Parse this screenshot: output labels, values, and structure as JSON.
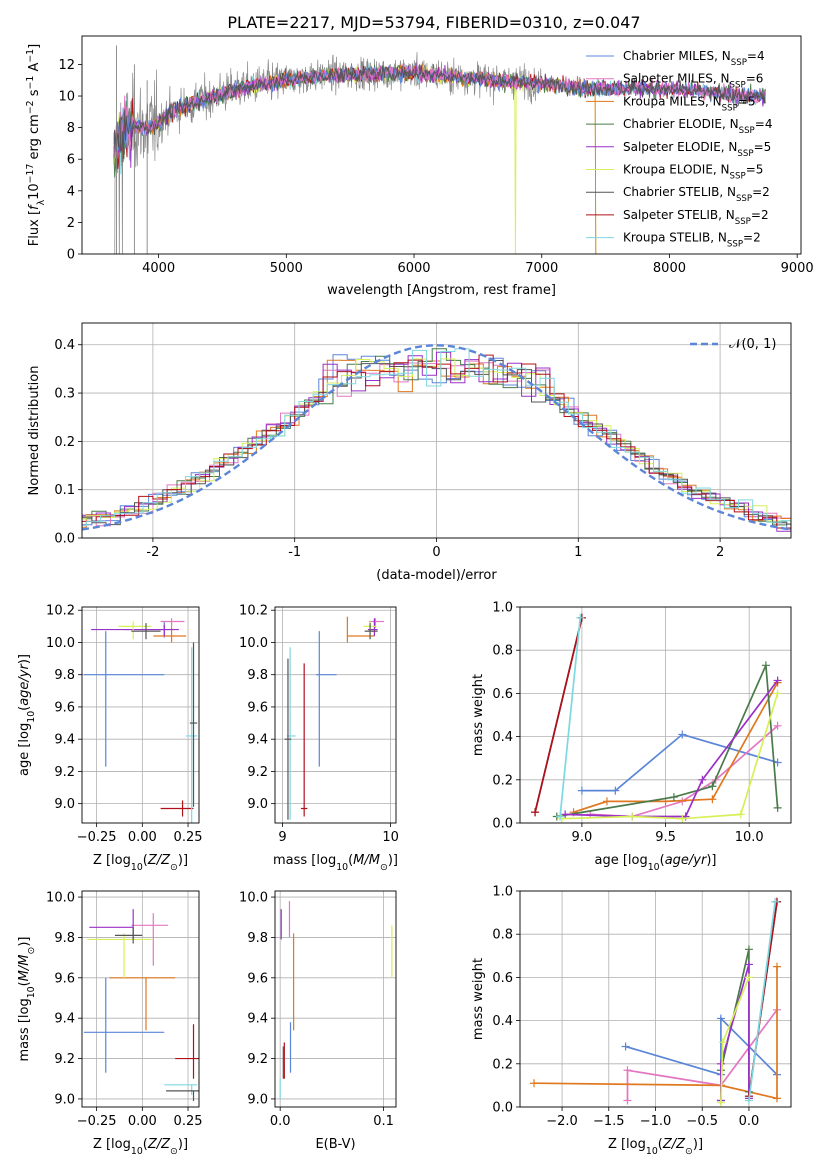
{
  "title": "PLATE=2217, MJD=53794, FIBERID=0310, z=0.047",
  "colors": [
    "#5b86d8",
    "#e377c2",
    "#e07820",
    "#4a7a4a",
    "#9b30c8",
    "#d6f05a",
    "#555555",
    "#b0101a",
    "#7ed8e0"
  ],
  "chart_data": [
    {
      "id": "spectrum",
      "type": "line",
      "title": "PLATE=2217, MJD=53794, FIBERID=0310, z=0.047",
      "xlabel": "wavelength [Angstrom, rest frame]",
      "ylabel": "Flux [f_λ 10^-17 erg cm^-2 s^-1 A^-1]",
      "xlim": [
        3400,
        9030
      ],
      "ylim": [
        0,
        13.8
      ],
      "xticks": [
        4000,
        5000,
        6000,
        7000,
        8000,
        9000
      ],
      "yticks": [
        0,
        2,
        4,
        6,
        8,
        10,
        12
      ],
      "grid": false,
      "legend_position": "right",
      "series": [
        {
          "name": "Chabrier MILES, N_SSP=4",
          "label": "Chabrier MILES, N",
          "n": "=4",
          "color": "#5b86d8"
        },
        {
          "name": "Salpeter MILES, N_SSP=6",
          "label": "Salpeter MILES, N",
          "n": "=6",
          "color": "#e377c2"
        },
        {
          "name": "Kroupa MILES, N_SSP=5",
          "label": "Kroupa MILES, N",
          "n": "=5",
          "color": "#e07820"
        },
        {
          "name": "Chabrier ELODIE, N_SSP=4",
          "label": "Chabrier ELODIE, N",
          "n": "=4",
          "color": "#4a7a4a"
        },
        {
          "name": "Salpeter ELODIE, N_SSP=5",
          "label": "Salpeter ELODIE, N",
          "n": "=5",
          "color": "#9b30c8"
        },
        {
          "name": "Kroupa ELODIE, N_SSP=5",
          "label": "Kroupa ELODIE, N",
          "n": "=5",
          "color": "#d6f05a"
        },
        {
          "name": "Chabrier STELIB, N_SSP=2",
          "label": "Chabrier STELIB, N",
          "n": "=2",
          "color": "#555555"
        },
        {
          "name": "Salpeter STELIB, N_SSP=2",
          "label": "Salpeter STELIB, N",
          "n": "=2",
          "color": "#b0101a"
        },
        {
          "name": "Kroupa STELIB, N_SSP=2",
          "label": "Kroupa STELIB, N",
          "n": "=2",
          "color": "#7ed8e0"
        }
      ],
      "continuum": [
        [
          3650,
          6.5
        ],
        [
          3700,
          7.5
        ],
        [
          3800,
          8.2
        ],
        [
          3900,
          8.0
        ],
        [
          4000,
          8.3
        ],
        [
          4100,
          9.0
        ],
        [
          4300,
          9.6
        ],
        [
          4500,
          10.2
        ],
        [
          4700,
          10.6
        ],
        [
          5000,
          11.0
        ],
        [
          5300,
          11.3
        ],
        [
          5600,
          11.4
        ],
        [
          6000,
          11.5
        ],
        [
          6500,
          11.1
        ],
        [
          7000,
          10.8
        ],
        [
          7400,
          10.5
        ],
        [
          7800,
          10.5
        ],
        [
          8200,
          10.3
        ],
        [
          8600,
          10.0
        ],
        [
          8750,
          10.0
        ]
      ],
      "data_range": [
        3650,
        8750
      ]
    },
    {
      "id": "residuals",
      "type": "histogram",
      "xlabel": "(data-model)/error",
      "ylabel": "Normed distribution",
      "xlim": [
        -2.5,
        2.5
      ],
      "ylim": [
        0,
        0.445
      ],
      "xticks": [
        -2,
        -1,
        0,
        1,
        2
      ],
      "yticks": [
        0.0,
        0.1,
        0.2,
        0.3,
        0.4
      ],
      "grid": true,
      "legend": "N(0,1)",
      "legend_position": "top-right",
      "bin_width": 0.1,
      "model_sigma": 1.0
    },
    {
      "id": "age_Z",
      "type": "errorbar",
      "xlabel": "Z [log10(Z/Z☉)]",
      "ylabel": "age  [log10(age/yr)]",
      "xlim": [
        -0.33,
        0.31
      ],
      "ylim": [
        8.88,
        10.22
      ],
      "xticks": [
        -0.25,
        0.0,
        0.25
      ],
      "xticklabels": [
        "−0.25",
        "0.00",
        "0.25"
      ],
      "yticks": [
        9.0,
        9.2,
        9.4,
        9.6,
        9.8,
        10.0,
        10.2
      ],
      "grid": true,
      "points": [
        {
          "c": 0,
          "x": 0.12,
          "xe": [
            0.22,
            0.03
          ],
          "y": 10.08,
          "ye": [
            0.05,
            0.05
          ]
        },
        {
          "c": 1,
          "x": 0.16,
          "xe": [
            0.06,
            0.07
          ],
          "y": 10.13,
          "ye": [
            0.04,
            0.02
          ]
        },
        {
          "c": 2,
          "x": 0.16,
          "xe": [
            0.1,
            0.08
          ],
          "y": 10.04,
          "ye": [
            0.04,
            0.05
          ]
        },
        {
          "c": 4,
          "x": 0.12,
          "xe": [
            0.4,
            0.08
          ],
          "y": 10.08,
          "ye": [
            0.04,
            0.03
          ]
        },
        {
          "c": 5,
          "x": -0.05,
          "xe": [
            0.08,
            0.1
          ],
          "y": 10.1,
          "ye": [
            0.08,
            0.03
          ]
        },
        {
          "c": 6,
          "x": 0.02,
          "xe": [
            0.08,
            0.08
          ],
          "y": 10.07,
          "ye": [
            0.05,
            0.05
          ]
        },
        {
          "c": 0,
          "x": -0.2,
          "xe": [
            0.12,
            0.32
          ],
          "y": 9.8,
          "ye": [
            0.57,
            0.27
          ]
        },
        {
          "c": 7,
          "x": 0.22,
          "xe": [
            0.12,
            0.06
          ],
          "y": 8.97,
          "ye": [
            0.05,
            0.05
          ]
        },
        {
          "c": 8,
          "x": 0.27,
          "xe": [
            0.03,
            0.03
          ],
          "y": 9.42,
          "ye": [
            0.55,
            0.55
          ]
        },
        {
          "c": 6,
          "x": 0.28,
          "xe": [
            0.02,
            0.02
          ],
          "y": 9.5,
          "ye": [
            0.52,
            0.5
          ]
        }
      ]
    },
    {
      "id": "age_mass",
      "type": "errorbar",
      "xlabel": "mass [log10(M/M☉)]",
      "ylabel": "",
      "xlim": [
        8.93,
        10.05
      ],
      "ylim": [
        8.88,
        10.22
      ],
      "xticks": [
        9,
        10
      ],
      "xticklabels": [
        "9",
        "10"
      ],
      "yticks": [
        9.0,
        9.2,
        9.4,
        9.6,
        9.8,
        10.0,
        10.2
      ],
      "grid": true,
      "points": [
        {
          "c": 0,
          "x": 9.34,
          "xe": [
            0.03,
            0.16
          ],
          "y": 9.8,
          "ye": [
            0.57,
            0.27
          ]
        },
        {
          "c": 2,
          "x": 9.6,
          "xe": [
            0.0,
            0.25
          ],
          "y": 10.04,
          "ye": [
            0.04,
            0.12
          ]
        },
        {
          "c": 1,
          "x": 9.86,
          "xe": [
            0.06,
            0.08
          ],
          "y": 10.13,
          "ye": [
            0.04,
            0.02
          ]
        },
        {
          "c": 4,
          "x": 9.85,
          "xe": [
            0.06,
            0.03
          ],
          "y": 10.08,
          "ye": [
            0.04,
            0.07
          ]
        },
        {
          "c": 5,
          "x": 9.81,
          "xe": [
            0.06,
            0.06
          ],
          "y": 10.1,
          "ye": [
            0.08,
            0.03
          ]
        },
        {
          "c": 6,
          "x": 9.81,
          "xe": [
            0.05,
            0.07
          ],
          "y": 10.07,
          "ye": [
            0.05,
            0.05
          ]
        },
        {
          "c": 7,
          "x": 9.2,
          "xe": [
            0.03,
            0.03
          ],
          "y": 8.97,
          "ye": [
            0.05,
            0.9
          ]
        },
        {
          "c": 8,
          "x": 9.07,
          "xe": [
            0.03,
            0.05
          ],
          "y": 9.42,
          "ye": [
            0.52,
            0.55
          ]
        },
        {
          "c": 6,
          "x": 9.05,
          "xe": [
            0.03,
            0.03
          ],
          "y": 9.4,
          "ye": [
            0.5,
            0.5
          ]
        }
      ]
    },
    {
      "id": "weight_age",
      "type": "line",
      "xlabel": "age  [log10(age/yr)]",
      "ylabel": "mass weight",
      "xlim": [
        8.63,
        10.25
      ],
      "ylim": [
        0,
        1.0
      ],
      "xticks": [
        9.0,
        9.5,
        10.0
      ],
      "xticklabels": [
        "9.0",
        "9.5",
        "10.0"
      ],
      "yticks": [
        0.0,
        0.2,
        0.4,
        0.6,
        0.8,
        1.0
      ],
      "grid": true,
      "series": [
        {
          "c": 0,
          "x": [
            9.0,
            9.2,
            9.6,
            10.17
          ],
          "y": [
            0.15,
            0.15,
            0.41,
            0.28
          ]
        },
        {
          "c": 1,
          "x": [
            9.05,
            9.3,
            9.6,
            9.8,
            10.17
          ],
          "y": [
            0.04,
            0.03,
            0.1,
            0.2,
            0.45
          ]
        },
        {
          "c": 2,
          "x": [
            8.95,
            9.15,
            9.5,
            9.78,
            10.17
          ],
          "y": [
            0.05,
            0.1,
            0.1,
            0.11,
            0.65
          ]
        },
        {
          "c": 3,
          "x": [
            8.85,
            9.55,
            9.78,
            10.1,
            10.17
          ],
          "y": [
            0.03,
            0.12,
            0.17,
            0.73,
            0.07
          ]
        },
        {
          "c": 4,
          "x": [
            8.9,
            9.3,
            9.62,
            9.72,
            10.17
          ],
          "y": [
            0.04,
            0.03,
            0.03,
            0.2,
            0.66
          ]
        },
        {
          "c": 5,
          "x": [
            8.88,
            9.3,
            9.6,
            9.95,
            10.17
          ],
          "y": [
            0.02,
            0.03,
            0.02,
            0.04,
            0.6
          ]
        },
        {
          "c": 6,
          "x": [
            8.72,
            9.0
          ],
          "y": [
            0.05,
            0.95
          ]
        },
        {
          "c": 7,
          "x": [
            8.72,
            9.0
          ],
          "y": [
            0.05,
            0.95
          ]
        },
        {
          "c": 8,
          "x": [
            8.87,
            8.99
          ],
          "y": [
            0.03,
            0.95
          ]
        }
      ]
    },
    {
      "id": "mass_Z",
      "type": "errorbar",
      "xlabel": "Z [log10(Z/Z☉)]",
      "ylabel": "mass [log10(M/M☉)]",
      "xlim": [
        -0.33,
        0.31
      ],
      "ylim": [
        8.96,
        10.03
      ],
      "xticks": [
        -0.25,
        0.0,
        0.25
      ],
      "xticklabels": [
        "−0.25",
        "0.00",
        "0.25"
      ],
      "yticks": [
        9.0,
        9.2,
        9.4,
        9.6,
        9.8,
        10.0
      ],
      "grid": true,
      "points": [
        {
          "c": 0,
          "x": -0.2,
          "xe": [
            0.12,
            0.32
          ],
          "y": 9.33,
          "ye": [
            0.2,
            0.27
          ]
        },
        {
          "c": 2,
          "x": 0.02,
          "xe": [
            0.2,
            0.16
          ],
          "y": 9.6,
          "ye": [
            0.26,
            0.0
          ]
        },
        {
          "c": 1,
          "x": 0.06,
          "xe": [
            0.12,
            0.08
          ],
          "y": 9.86,
          "ye": [
            0.2,
            0.06
          ]
        },
        {
          "c": 4,
          "x": -0.05,
          "xe": [
            0.24,
            0.0
          ],
          "y": 9.85,
          "ye": [
            0.06,
            0.09
          ]
        },
        {
          "c": 5,
          "x": -0.1,
          "xe": [
            0.2,
            0.15
          ],
          "y": 9.79,
          "ye": [
            0.19,
            0.03
          ]
        },
        {
          "c": 6,
          "x": -0.05,
          "xe": [
            0.1,
            0.05
          ],
          "y": 9.81,
          "ye": [
            0.04,
            0.04
          ]
        },
        {
          "c": 7,
          "x": 0.28,
          "xe": [
            0.1,
            0.03
          ],
          "y": 9.2,
          "ye": [
            0.1,
            0.17
          ]
        },
        {
          "c": 8,
          "x": 0.27,
          "xe": [
            0.15,
            0.03
          ],
          "y": 9.07,
          "ye": [
            0.05,
            0.0
          ]
        },
        {
          "c": 6,
          "x": 0.28,
          "xe": [
            0.15,
            0.03
          ],
          "y": 9.04,
          "ye": [
            0.05,
            0.0
          ]
        }
      ]
    },
    {
      "id": "mass_EBV",
      "type": "errorbar",
      "xlabel": "E(B-V)",
      "ylabel": "",
      "xlim": [
        -0.005,
        0.112
      ],
      "ylim": [
        8.96,
        10.03
      ],
      "xticks": [
        0.0,
        0.1
      ],
      "xticklabels": [
        "0.0",
        "0.1"
      ],
      "yticks": [
        9.0,
        9.2,
        9.4,
        9.6,
        9.8,
        10.0
      ],
      "grid": true,
      "points": [
        {
          "c": 0,
          "x": 0.01,
          "xe": [
            0,
            0
          ],
          "y": 9.33,
          "ye": [
            0.2,
            0.05
          ]
        },
        {
          "c": 2,
          "x": 0.013,
          "xe": [
            0,
            0
          ],
          "y": 9.6,
          "ye": [
            0.26,
            0.22
          ]
        },
        {
          "c": 1,
          "x": 0.009,
          "xe": [
            0,
            0
          ],
          "y": 9.86,
          "ye": [
            0.06,
            0.12
          ]
        },
        {
          "c": 4,
          "x": 0.001,
          "xe": [
            0,
            0
          ],
          "y": 9.85,
          "ye": [
            0.06,
            0.09
          ]
        },
        {
          "c": 5,
          "x": 0.108,
          "xe": [
            0,
            0
          ],
          "y": 9.79,
          "ye": [
            0.19,
            0.07
          ]
        },
        {
          "c": 6,
          "x": 0.003,
          "xe": [
            0,
            0
          ],
          "y": 9.2,
          "ye": [
            0.1,
            0.06
          ]
        },
        {
          "c": 7,
          "x": 0.004,
          "xe": [
            0,
            0
          ],
          "y": 9.2,
          "ye": [
            0.1,
            0.08
          ]
        },
        {
          "c": 8,
          "x": 0.0,
          "xe": [
            0,
            0
          ],
          "y": 9.05,
          "ye": [
            0.05,
            0.05
          ]
        }
      ]
    },
    {
      "id": "weight_Z",
      "type": "line",
      "xlabel": "Z [log10(Z/Z☉)]",
      "ylabel": "mass weight",
      "xlim": [
        -2.45,
        0.45
      ],
      "ylim": [
        0,
        1.0
      ],
      "xticks": [
        -2.0,
        -1.5,
        -1.0,
        -0.5,
        0.0
      ],
      "xticklabels": [
        "−2.0",
        "−1.5",
        "−1.0",
        "−0.5",
        "0.0"
      ],
      "yticks": [
        0.0,
        0.2,
        0.4,
        0.6,
        0.8,
        1.0
      ],
      "grid": true,
      "series": [
        {
          "c": 0,
          "x": [
            -1.32,
            -0.3,
            -0.3,
            0.3
          ],
          "y": [
            0.28,
            0.15,
            0.41,
            0.15
          ]
        },
        {
          "c": 1,
          "x": [
            -1.3,
            -1.3,
            -0.3,
            0.3
          ],
          "y": [
            0.03,
            0.17,
            0.1,
            0.45
          ]
        },
        {
          "c": 2,
          "x": [
            -2.3,
            -0.3,
            0.3,
            0.3
          ],
          "y": [
            0.11,
            0.1,
            0.04,
            0.65
          ]
        },
        {
          "c": 3,
          "x": [
            -0.3,
            -0.3,
            -0.0,
            -0.0
          ],
          "y": [
            0.03,
            0.17,
            0.73,
            0.07
          ]
        },
        {
          "c": 4,
          "x": [
            -0.3,
            -0.3,
            -0.0,
            -0.0
          ],
          "y": [
            0.03,
            0.2,
            0.66,
            0.04
          ]
        },
        {
          "c": 5,
          "x": [
            -0.3,
            -0.28,
            -0.0
          ],
          "y": [
            0.02,
            0.3,
            0.6
          ]
        },
        {
          "c": 6,
          "x": [
            0.0,
            0.3
          ],
          "y": [
            0.05,
            0.95
          ]
        },
        {
          "c": 7,
          "x": [
            0.0,
            0.3
          ],
          "y": [
            0.05,
            0.95
          ]
        },
        {
          "c": 8,
          "x": [
            0.0,
            0.28
          ],
          "y": [
            0.03,
            0.95
          ]
        }
      ]
    }
  ]
}
